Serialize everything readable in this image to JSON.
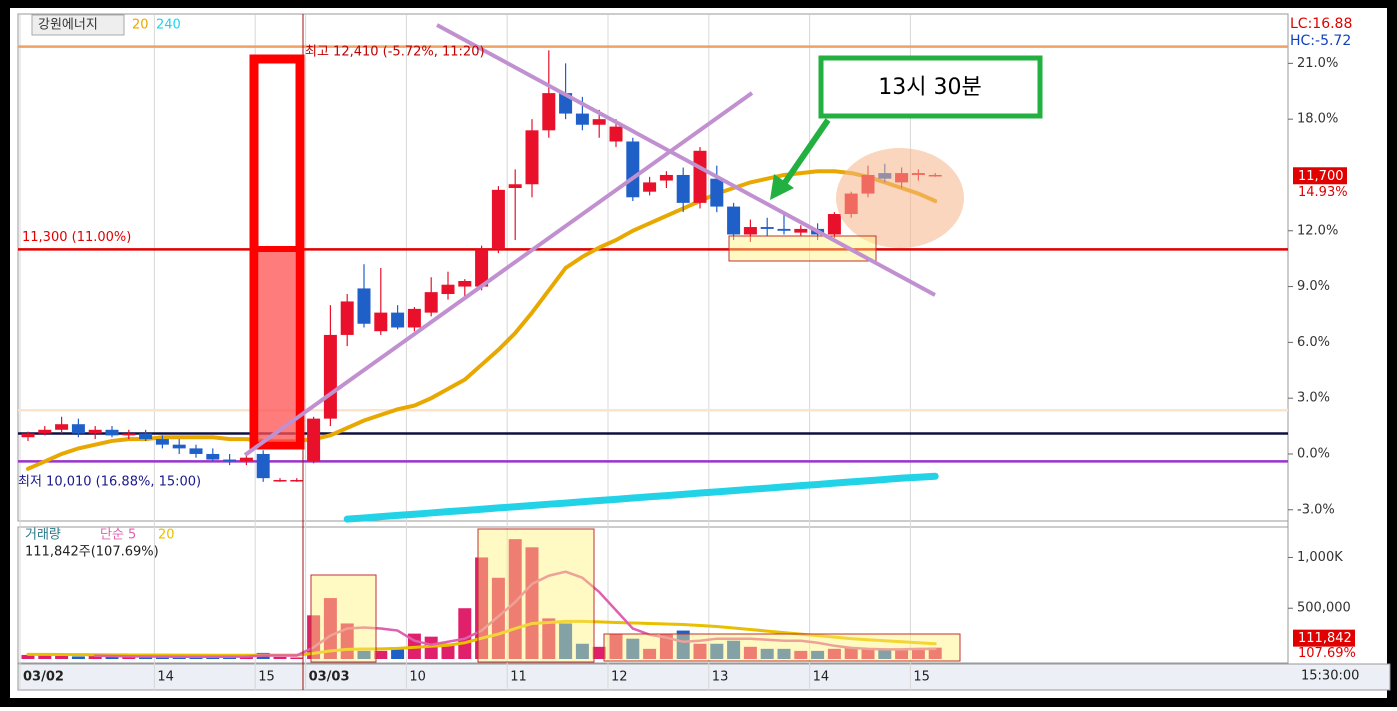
{
  "chart_data": {
    "type": "candlestick",
    "stock_name": "강원에너지",
    "ma_legend": [
      {
        "label": "20",
        "color": "#e8a800"
      },
      {
        "label": "240",
        "color": "#22d3e8"
      }
    ],
    "lc_label": "LC:16.88",
    "hc_label": "HC:-5.72",
    "high_label": "최고 12,410 (-5.72%, 11:20)",
    "low_label": "최저 10,010 (16.88%, 15:00)",
    "callout": "13시 30분",
    "last_price_label": "11,700",
    "last_change": {
      "value": 14.93,
      "label": "14.93%"
    },
    "categories": [
      "03/02",
      null,
      null,
      null,
      null,
      null,
      null,
      null,
      "14",
      null,
      null,
      null,
      null,
      null,
      "15",
      null,
      null,
      "03/03",
      null,
      null,
      null,
      null,
      null,
      "10",
      null,
      null,
      null,
      null,
      null,
      "11",
      null,
      null,
      null,
      null,
      null,
      "12",
      null,
      null,
      null,
      null,
      null,
      "13",
      null,
      null,
      null,
      null,
      null,
      "14",
      null,
      null,
      null,
      null,
      null,
      "15",
      null
    ],
    "x_end_label": "15:30:00",
    "open": [
      0.9,
      1.1,
      1.3,
      1.6,
      1.1,
      1.3,
      1.0,
      1.1,
      0.8,
      0.5,
      0.3,
      0.0,
      -0.3,
      -0.4,
      0.0,
      -1.4,
      -1.4,
      -0.4,
      1.9,
      6.4,
      8.9,
      6.6,
      7.6,
      6.8,
      7.6,
      8.6,
      9.0,
      9.0,
      11.0,
      14.3,
      14.5,
      17.4,
      19.4,
      18.3,
      17.7,
      16.8,
      16.8,
      14.1,
      14.7,
      15.0,
      13.5,
      14.8,
      13.3,
      11.8,
      12.2,
      12.1,
      11.9,
      12.1,
      11.8,
      12.9,
      14.0,
      15.1,
      14.6,
      15.0,
      15.0
    ],
    "high": [
      1.2,
      1.5,
      2.0,
      1.9,
      1.5,
      1.5,
      1.3,
      1.3,
      1.0,
      0.8,
      0.5,
      0.3,
      0.0,
      -0.1,
      0.2,
      -1.3,
      -1.3,
      2.0,
      8.0,
      8.6,
      10.2,
      10.0,
      8.0,
      7.9,
      9.5,
      9.8,
      9.4,
      11.2,
      14.4,
      15.3,
      18.0,
      21.7,
      21.0,
      19.2,
      18.5,
      18.0,
      17.0,
      14.9,
      15.2,
      15.4,
      16.5,
      15.5,
      13.5,
      12.6,
      12.7,
      12.9,
      12.3,
      12.4,
      13.0,
      14.1,
      15.5,
      15.6,
      15.4,
      15.3,
      15.1
    ],
    "low": [
      0.7,
      1.0,
      1.1,
      0.9,
      0.8,
      0.9,
      0.8,
      0.7,
      0.3,
      0.0,
      -0.2,
      -0.4,
      -0.6,
      -0.6,
      -1.5,
      -1.5,
      -1.5,
      -0.5,
      1.5,
      5.8,
      6.8,
      6.4,
      6.7,
      6.6,
      7.4,
      8.3,
      8.4,
      8.8,
      10.8,
      11.5,
      13.8,
      17.0,
      18.0,
      17.4,
      17.0,
      16.5,
      13.6,
      13.9,
      14.3,
      13.0,
      13.2,
      13.0,
      11.5,
      11.4,
      11.7,
      11.8,
      11.7,
      11.5,
      11.6,
      12.7,
      13.8,
      14.6,
      14.3,
      14.7,
      14.9
    ],
    "close": [
      1.1,
      1.3,
      1.6,
      1.1,
      1.3,
      1.0,
      1.1,
      0.8,
      0.5,
      0.3,
      0.0,
      -0.3,
      -0.4,
      -0.2,
      -1.3,
      -1.4,
      -1.4,
      1.9,
      6.4,
      8.2,
      7.0,
      7.6,
      6.8,
      7.8,
      8.7,
      9.1,
      9.3,
      11.0,
      14.2,
      14.5,
      17.4,
      19.4,
      18.3,
      17.7,
      18.0,
      17.6,
      13.8,
      14.6,
      15.0,
      13.5,
      16.3,
      13.3,
      11.8,
      12.2,
      12.1,
      12.0,
      12.1,
      11.8,
      12.9,
      14.0,
      15.0,
      14.8,
      15.1,
      15.1,
      15.0
    ],
    "ma20": [
      -0.8,
      -0.4,
      0,
      0.3,
      0.5,
      0.7,
      0.8,
      0.8,
      0.9,
      0.9,
      0.9,
      0.9,
      0.8,
      0.8,
      0.7,
      0.7,
      0.7,
      0.8,
      1.0,
      1.4,
      1.8,
      2.1,
      2.4,
      2.6,
      3.0,
      3.5,
      4.0,
      4.8,
      5.6,
      6.5,
      7.6,
      8.8,
      10.0,
      10.6,
      11.1,
      11.5,
      12.0,
      12.4,
      12.8,
      13.2,
      13.6,
      14.0,
      14.3,
      14.6,
      14.8,
      15.0,
      15.1,
      15.2,
      15.2,
      15.1,
      14.9,
      14.6,
      14.3,
      14.0,
      13.6
    ],
    "ma240": [
      null,
      null,
      null,
      null,
      null,
      null,
      null,
      null,
      null,
      null,
      null,
      null,
      null,
      null,
      null,
      null,
      null,
      null,
      null,
      -3.5,
      -3.44,
      -3.37,
      -3.3,
      -3.24,
      -3.17,
      -3.1,
      -3.04,
      -2.97,
      -2.9,
      -2.84,
      -2.77,
      -2.7,
      -2.64,
      -2.57,
      -2.5,
      -2.44,
      -2.37,
      -2.3,
      -2.24,
      -2.17,
      -2.1,
      -2.04,
      -1.97,
      -1.9,
      -1.84,
      -1.77,
      -1.7,
      -1.64,
      -1.57,
      -1.5,
      -1.44,
      -1.37,
      -1.3,
      -1.25,
      -1.2
    ],
    "ylim": [
      -3.55,
      23.6
    ],
    "yticks": [
      {
        "value": 21,
        "label": "21.0%"
      },
      {
        "value": 18,
        "label": "18.0%"
      },
      {
        "value": 12,
        "label": "12.0%"
      },
      {
        "value": 9,
        "label": "9.0%"
      },
      {
        "value": 6,
        "label": "6.0%"
      },
      {
        "value": 3,
        "label": "3.0%"
      },
      {
        "value": 0,
        "label": "0.0%"
      },
      {
        "value": -3,
        "label": "-3.0%"
      }
    ],
    "hlines": [
      {
        "value": 21.9,
        "color": "#f0a060"
      },
      {
        "value": 11.0,
        "color": "#e00000",
        "label": "11,300 (11.00%)"
      },
      {
        "value": 2.35,
        "color": "#fde2cc"
      },
      {
        "value": 1.1,
        "color": "#101040"
      },
      {
        "value": -0.4,
        "color": "#9933cc"
      }
    ],
    "volume_title": "거래량",
    "volume_ma_legend": [
      {
        "label": "단순 5",
        "color": "#e060b0"
      },
      {
        "label": "20",
        "color": "#e8c000"
      }
    ],
    "volume_info": "111,842주(107.69%)",
    "volume": [
      40000,
      35000,
      30000,
      25000,
      30000,
      25000,
      20000,
      25000,
      20000,
      20000,
      25000,
      20000,
      25000,
      30000,
      60000,
      20000,
      15000,
      430000,
      600000,
      350000,
      80000,
      80000,
      100000,
      250000,
      220000,
      150000,
      500000,
      1000000,
      800000,
      1180000,
      1100000,
      400000,
      350000,
      150000,
      120000,
      250000,
      200000,
      100000,
      250000,
      280000,
      150000,
      150000,
      180000,
      120000,
      100000,
      100000,
      80000,
      80000,
      100000,
      110000,
      100000,
      90000,
      100000,
      100000,
      111842
    ],
    "volume_ma5": [
      null,
      null,
      null,
      null,
      32000,
      29000,
      26000,
      25000,
      24000,
      22000,
      22000,
      22000,
      22000,
      24000,
      35000,
      35000,
      34000,
      115000,
      230000,
      300000,
      310000,
      300000,
      280000,
      180000,
      140000,
      170000,
      200000,
      280000,
      420000,
      560000,
      740000,
      820000,
      860000,
      800000,
      660000,
      480000,
      300000,
      240000,
      210000,
      170000,
      180000,
      200000,
      200000,
      200000,
      190000,
      180000,
      180000,
      160000,
      130000,
      110000,
      100000,
      95000,
      95000,
      100000,
      100000
    ],
    "volume_ma20": [
      45000,
      45000,
      44000,
      43000,
      42000,
      41000,
      40000,
      40000,
      39000,
      38000,
      38000,
      37000,
      37000,
      37000,
      38000,
      38000,
      38000,
      55000,
      80000,
      95000,
      98000,
      100000,
      105000,
      115000,
      125000,
      135000,
      160000,
      205000,
      245000,
      300000,
      350000,
      360000,
      370000,
      370000,
      365000,
      360000,
      355000,
      350000,
      345000,
      340000,
      330000,
      320000,
      305000,
      290000,
      275000,
      260000,
      245000,
      230000,
      215000,
      200000,
      190000,
      180000,
      170000,
      160000,
      150000
    ],
    "vlim": [
      0,
      1290000
    ],
    "vticks": [
      {
        "value": 1000000,
        "label": "1,000K"
      },
      {
        "value": 500000,
        "label": "500,000"
      }
    ],
    "last_volume_label": "111,842",
    "last_volume_ratio_label": "107.69%",
    "up_color": "#e8102a",
    "down_color": "#1f5fc8",
    "volume_up_color": "#e0206a"
  }
}
